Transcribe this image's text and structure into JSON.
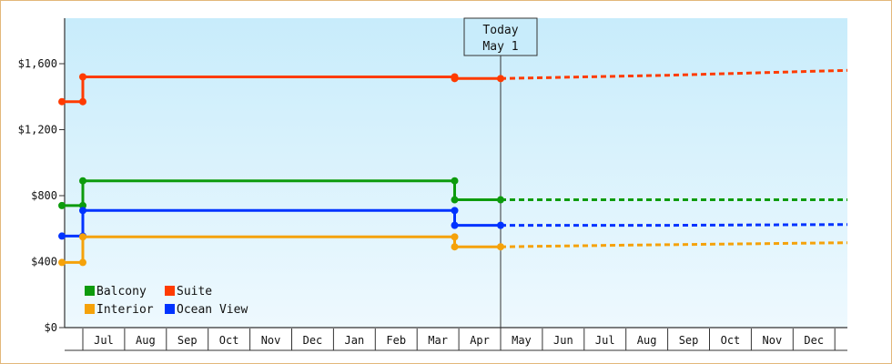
{
  "chart_data": {
    "type": "line",
    "y_ticks": [
      {
        "value": 0,
        "label": "$0"
      },
      {
        "value": 400,
        "label": "$400"
      },
      {
        "value": 800,
        "label": "$800"
      },
      {
        "value": 1200,
        "label": "$1,200"
      },
      {
        "value": 1600,
        "label": "$1,600"
      }
    ],
    "ylim": [
      0,
      1600
    ],
    "x_months": [
      "Jul",
      "Aug",
      "Sep",
      "Oct",
      "Nov",
      "Dec",
      "Jan",
      "Feb",
      "Mar",
      "Apr",
      "May",
      "Jun",
      "Jul",
      "Aug",
      "Sep",
      "Oct",
      "Nov",
      "Dec"
    ],
    "today": {
      "line1": "Today",
      "line2": "May 1",
      "x": 10.0
    },
    "legend": {
      "placement": "bottom-left"
    },
    "series": [
      {
        "name": "Suite",
        "color": "#ff3b00",
        "points": [
          [
            -0.5,
            1370
          ],
          [
            0.0,
            1370
          ],
          [
            0.0,
            1520
          ],
          [
            8.9,
            1520
          ],
          [
            8.9,
            1510
          ],
          [
            10.0,
            1510
          ]
        ],
        "markers": [
          [
            -0.5,
            1370
          ],
          [
            0.0,
            1370
          ],
          [
            0.0,
            1520
          ],
          [
            8.9,
            1520
          ],
          [
            8.9,
            1510
          ],
          [
            10.0,
            1510
          ]
        ],
        "forecast": [
          [
            10.0,
            1510
          ],
          [
            14.0,
            1530
          ],
          [
            18.3,
            1560
          ]
        ]
      },
      {
        "name": "Balcony",
        "color": "#0d9b0d",
        "points": [
          [
            -0.5,
            740
          ],
          [
            0.0,
            740
          ],
          [
            0.0,
            890
          ],
          [
            8.9,
            890
          ],
          [
            8.9,
            775
          ],
          [
            10.0,
            775
          ]
        ],
        "markers": [
          [
            -0.5,
            740
          ],
          [
            0.0,
            740
          ],
          [
            0.0,
            890
          ],
          [
            8.9,
            890
          ],
          [
            8.9,
            775
          ],
          [
            10.0,
            775
          ]
        ],
        "forecast": [
          [
            10.0,
            775
          ],
          [
            18.3,
            775
          ]
        ]
      },
      {
        "name": "Ocean View",
        "color": "#0033ff",
        "points": [
          [
            -0.5,
            555
          ],
          [
            0.0,
            555
          ],
          [
            0.0,
            710
          ],
          [
            8.9,
            710
          ],
          [
            8.9,
            620
          ],
          [
            10.0,
            620
          ]
        ],
        "markers": [
          [
            -0.5,
            555
          ],
          [
            0.0,
            555
          ],
          [
            0.0,
            710
          ],
          [
            8.9,
            710
          ],
          [
            8.9,
            620
          ],
          [
            10.0,
            620
          ]
        ],
        "forecast": [
          [
            10.0,
            620
          ],
          [
            14.0,
            620
          ],
          [
            18.3,
            625
          ]
        ]
      },
      {
        "name": "Interior",
        "color": "#f5a20a",
        "points": [
          [
            -0.5,
            395
          ],
          [
            0.0,
            395
          ],
          [
            0.0,
            550
          ],
          [
            8.9,
            550
          ],
          [
            8.9,
            490
          ],
          [
            10.0,
            490
          ]
        ],
        "markers": [
          [
            -0.5,
            395
          ],
          [
            0.0,
            395
          ],
          [
            0.0,
            550
          ],
          [
            8.9,
            550
          ],
          [
            8.9,
            490
          ],
          [
            10.0,
            490
          ]
        ],
        "forecast": [
          [
            10.0,
            490
          ],
          [
            13.0,
            500
          ],
          [
            18.3,
            515
          ]
        ]
      }
    ],
    "legend_order": [
      "Balcony",
      "Suite",
      "Interior",
      "Ocean View"
    ]
  }
}
